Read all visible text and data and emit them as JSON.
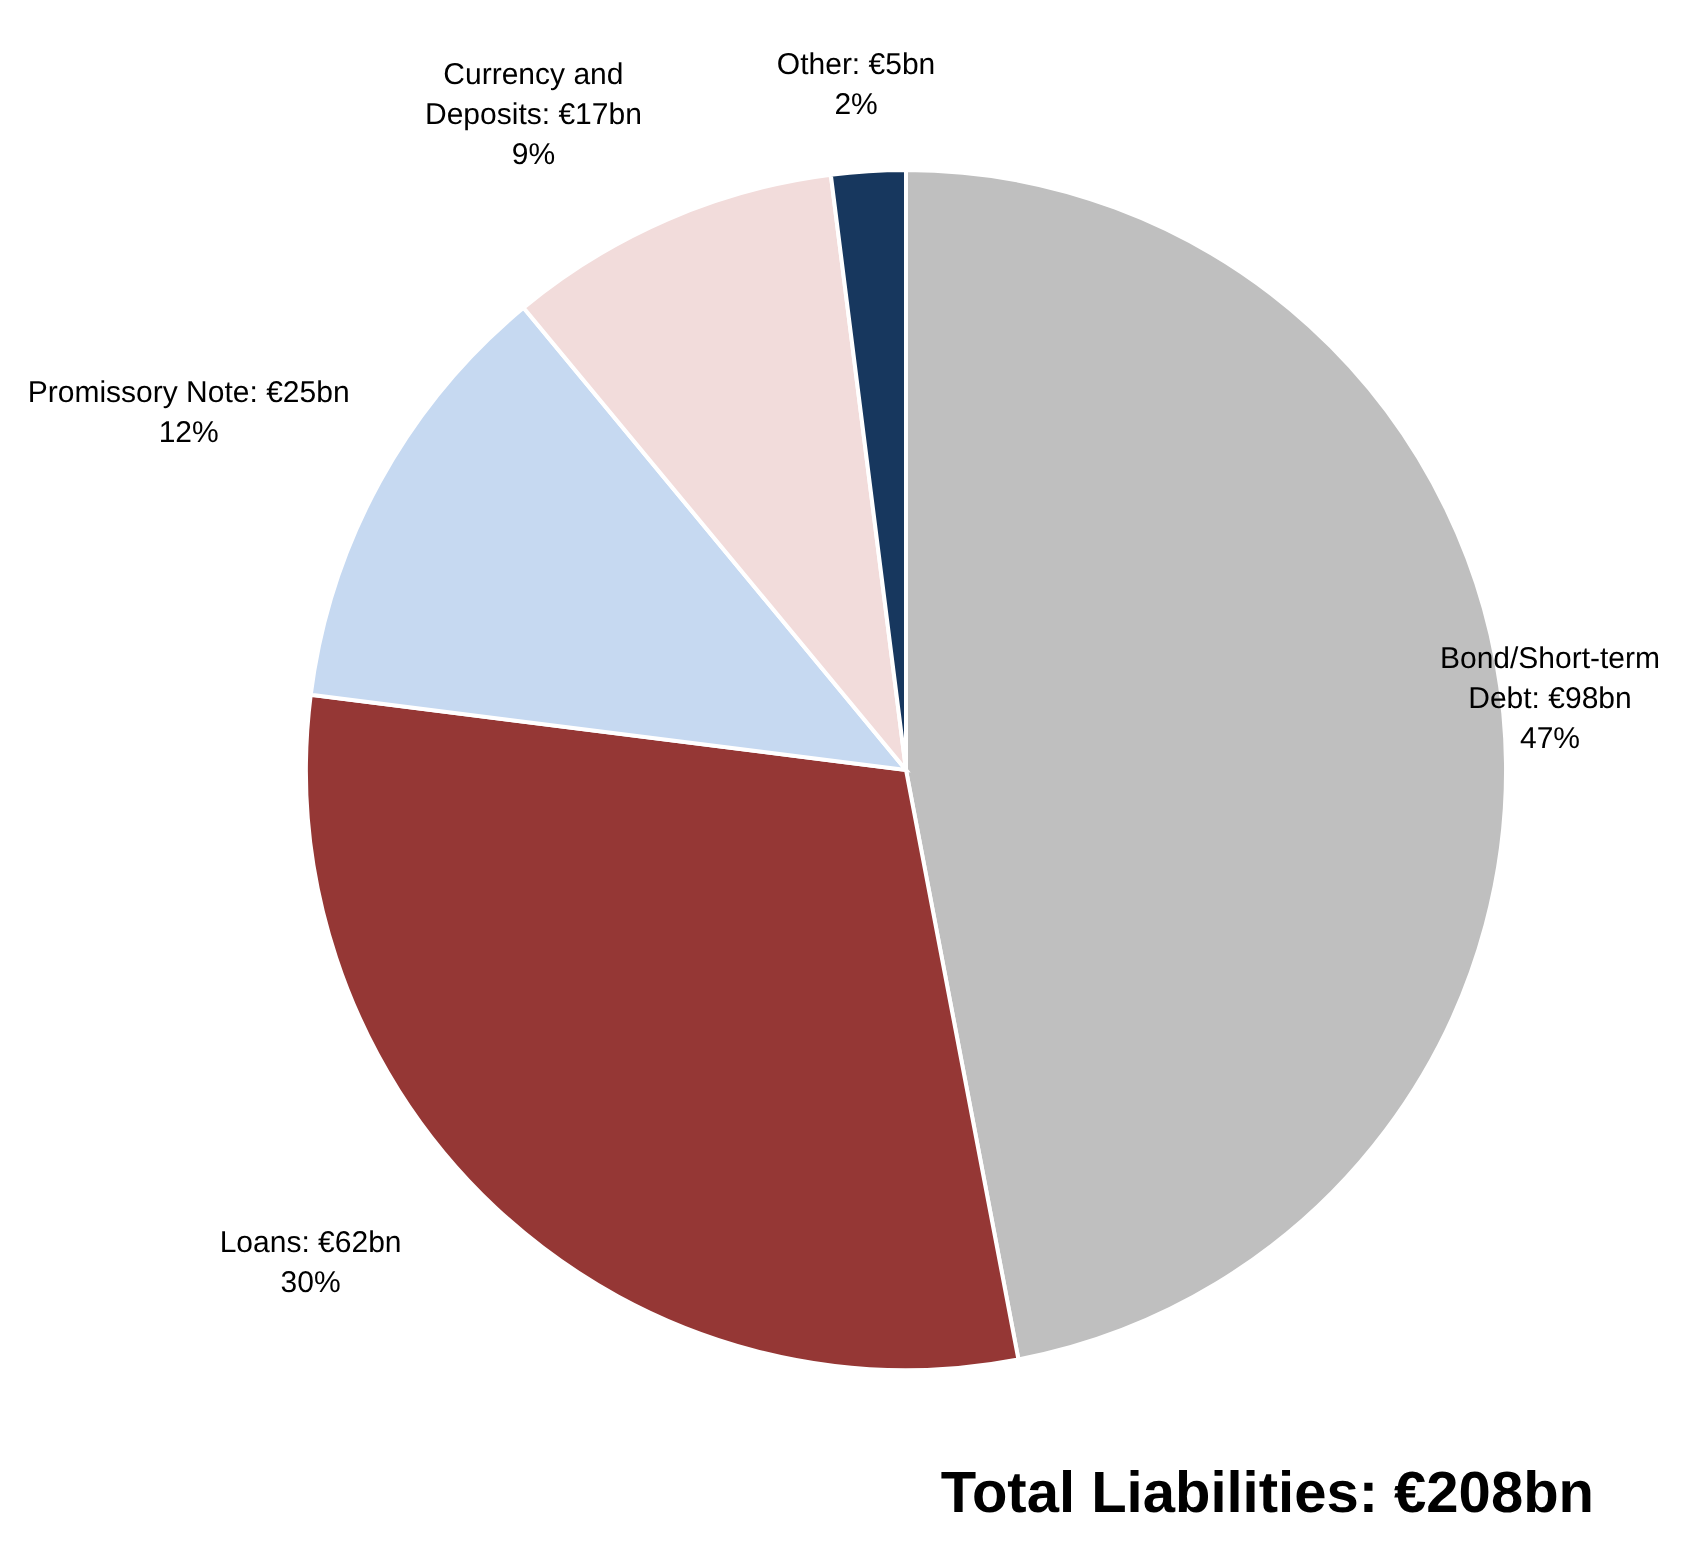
{
  "chart_data": {
    "type": "pie",
    "categories": [
      "Bond/Short-term Debt",
      "Loans",
      "Promissory Note",
      "Currency and Deposits",
      "Other"
    ],
    "values": [
      47,
      30,
      12,
      9,
      2
    ],
    "value_labels": [
      "€98bn\n47%",
      "€62bn\n30%",
      "€25bn\n12%",
      "€17bn\n9%",
      "€5bn\n2%"
    ],
    "colors": [
      "#bfbfbf",
      "#953735",
      "#c6d9f1",
      "#f2dcdb",
      "#17375e"
    ],
    "annotations": [
      "Total Liabilities: €208bn"
    ],
    "legend": false
  }
}
